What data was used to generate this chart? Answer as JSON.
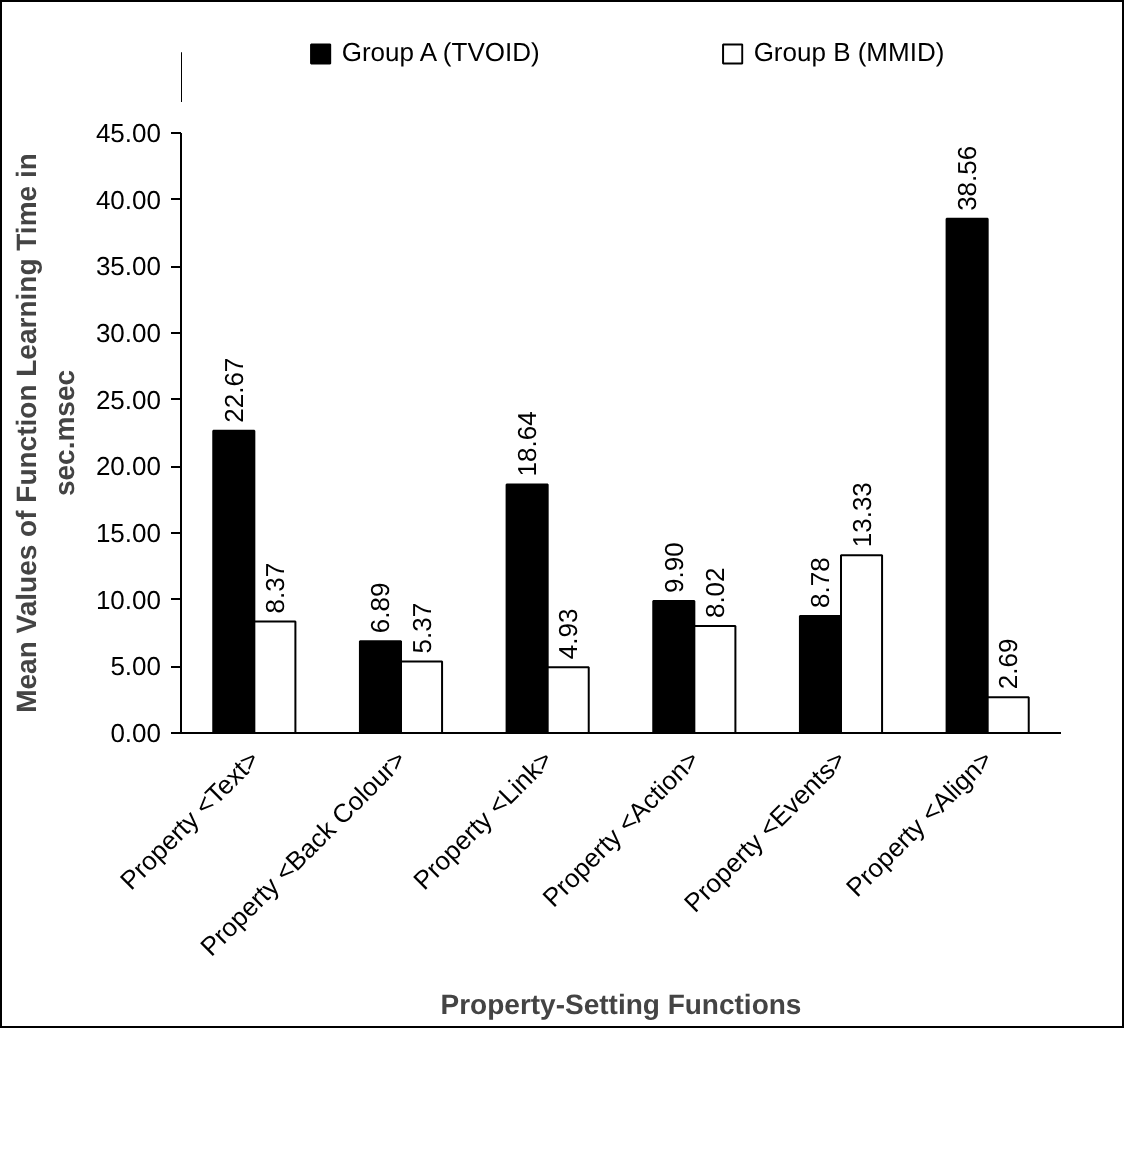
{
  "chart_data": {
    "type": "bar",
    "xlabel": "Property-Setting Functions",
    "ylabel": "Mean Values of Function Learning Time in sec.msec",
    "categories": [
      "Property <Text>",
      "Property <Back Colour>",
      "Property <Link>",
      "Property <Action>",
      "Property <Events>",
      "Property <Align>"
    ],
    "series": [
      {
        "name": "Group A (TVOID)",
        "color": "#000000",
        "values": [
          22.67,
          6.89,
          18.64,
          9.9,
          8.78,
          38.56
        ],
        "value_labels": [
          "22.67",
          "6.89",
          "18.64",
          "9.90",
          "8.78",
          "38.56"
        ]
      },
      {
        "name": "Group B (MMID)",
        "color": "#ffffff",
        "values": [
          8.37,
          5.37,
          4.93,
          8.02,
          13.33,
          2.69
        ],
        "value_labels": [
          "8.37",
          "5.37",
          "4.93",
          "8.02",
          "13.33",
          "2.69"
        ]
      }
    ],
    "ylim": [
      0,
      45
    ],
    "yticks": [
      {
        "value": 0,
        "label": "0.00"
      },
      {
        "value": 5,
        "label": "5.00"
      },
      {
        "value": 10,
        "label": "10.00"
      },
      {
        "value": 15,
        "label": "15.00"
      },
      {
        "value": 20,
        "label": "20.00"
      },
      {
        "value": 25,
        "label": "25.00"
      },
      {
        "value": 30,
        "label": "30.00"
      },
      {
        "value": 35,
        "label": "35.00"
      },
      {
        "value": 40,
        "label": "40.00"
      },
      {
        "value": 45,
        "label": "45.00"
      }
    ],
    "grid": false,
    "legend": "top"
  }
}
